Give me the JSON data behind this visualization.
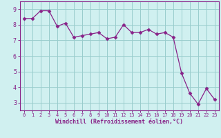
{
  "x": [
    0,
    1,
    2,
    3,
    4,
    5,
    6,
    7,
    8,
    9,
    10,
    11,
    12,
    13,
    14,
    15,
    16,
    17,
    18,
    19,
    20,
    21,
    22,
    23
  ],
  "y": [
    8.4,
    8.4,
    8.9,
    8.9,
    7.9,
    8.1,
    7.2,
    7.3,
    7.4,
    7.5,
    7.1,
    7.2,
    8.0,
    7.5,
    7.5,
    7.7,
    7.4,
    7.5,
    7.2,
    4.9,
    3.6,
    2.9,
    3.9,
    3.2
  ],
  "line_color": "#882288",
  "marker": "D",
  "marker_size": 2.5,
  "bg_color": "#d0f0f0",
  "grid_color": "#99cccc",
  "xlabel": "Windchill (Refroidissement éolien,°C)",
  "xlabel_color": "#882288",
  "tick_color": "#882288",
  "spine_color": "#882288",
  "ylabel_ticks": [
    3,
    4,
    5,
    6,
    7,
    8,
    9
  ],
  "xlim": [
    -0.5,
    23.5
  ],
  "ylim": [
    2.5,
    9.5
  ]
}
